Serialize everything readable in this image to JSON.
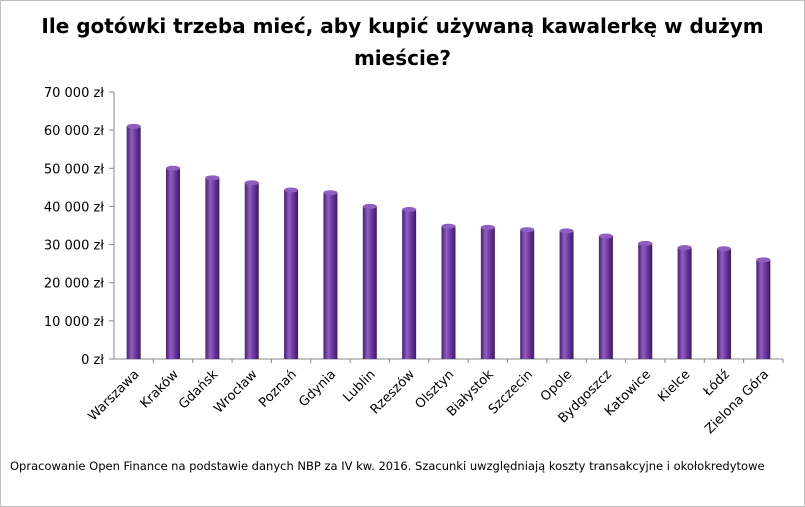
{
  "chart_data": {
    "type": "bar",
    "title": "Ile gotówki trzeba mieć, aby kupić używaną kawalerkę w dużym mieście?",
    "categories": [
      "Warszawa",
      "Kraków",
      "Gdańsk",
      "Wrocław",
      "Poznań",
      "Gdynia",
      "Lublin",
      "Rzeszów",
      "Olsztyn",
      "Białystok",
      "Szczecin",
      "Opole",
      "Bydgoszcz",
      "Katowice",
      "Kielce",
      "Łódź",
      "Zielona Góra"
    ],
    "values": [
      61000,
      50000,
      47500,
      46200,
      44300,
      43600,
      40000,
      39200,
      34800,
      34500,
      33900,
      33600,
      32200,
      30300,
      29200,
      28900,
      26000
    ],
    "ylim": [
      0,
      70000
    ],
    "yticks": [
      "0 zł",
      "10 000 zł",
      "20 000 zł",
      "30 000 zł",
      "40 000 zł",
      "50 000 zł",
      "60 000 zł",
      "70 000 zł"
    ],
    "ytick_values": [
      0,
      10000,
      20000,
      30000,
      40000,
      50000,
      60000,
      70000
    ],
    "bar_color": "#5b2a86",
    "bar_highlight": "#8f5fc0",
    "grid": false,
    "legend": "none"
  },
  "source_note": "Opracowanie Open Finance na podstawie danych NBP za IV kw. 2016. Szacunki uwzględniają koszty transakcyjne i okołokredytowe"
}
